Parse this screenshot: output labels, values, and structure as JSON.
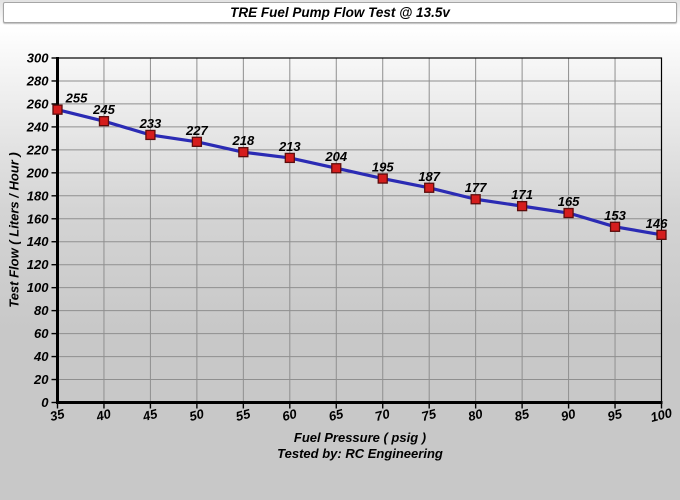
{
  "title_bar": {
    "text": "TRE Fuel Pump Flow Test @ 13.5v"
  },
  "chart_data": {
    "type": "line",
    "title": "TRE Fuel Pump Flow Test @ 13.5v",
    "x": [
      35,
      40,
      45,
      50,
      55,
      60,
      65,
      70,
      75,
      80,
      85,
      90,
      95,
      100
    ],
    "series": [
      {
        "name": "Test Flow",
        "values": [
          255,
          245,
          233,
          227,
          218,
          213,
          204,
          195,
          187,
          177,
          171,
          165,
          153,
          146
        ]
      }
    ],
    "xlabel": "Fuel Pressure ( psig )",
    "ylabel": "Test Flow ( Liters / Hour )",
    "footer": "Tested by: RC Engineering",
    "xlim": [
      35,
      100
    ],
    "x_tick_step": 5,
    "ylim": [
      0,
      300
    ],
    "y_tick_step": 20,
    "grid": true,
    "legend": "none",
    "data_labels_shown": true,
    "colors": {
      "line": "#2b2bb4",
      "marker_fill": "#d51d1d",
      "marker_border": "#5c0d0d",
      "grid": "#8f8f8f",
      "axis": "#000000",
      "text": "#000000",
      "band_bg": "#ffffff",
      "band_border": "#a6a6a6",
      "bg_top": "#ffffff",
      "bg_bottom": "#c8c8c8"
    }
  }
}
